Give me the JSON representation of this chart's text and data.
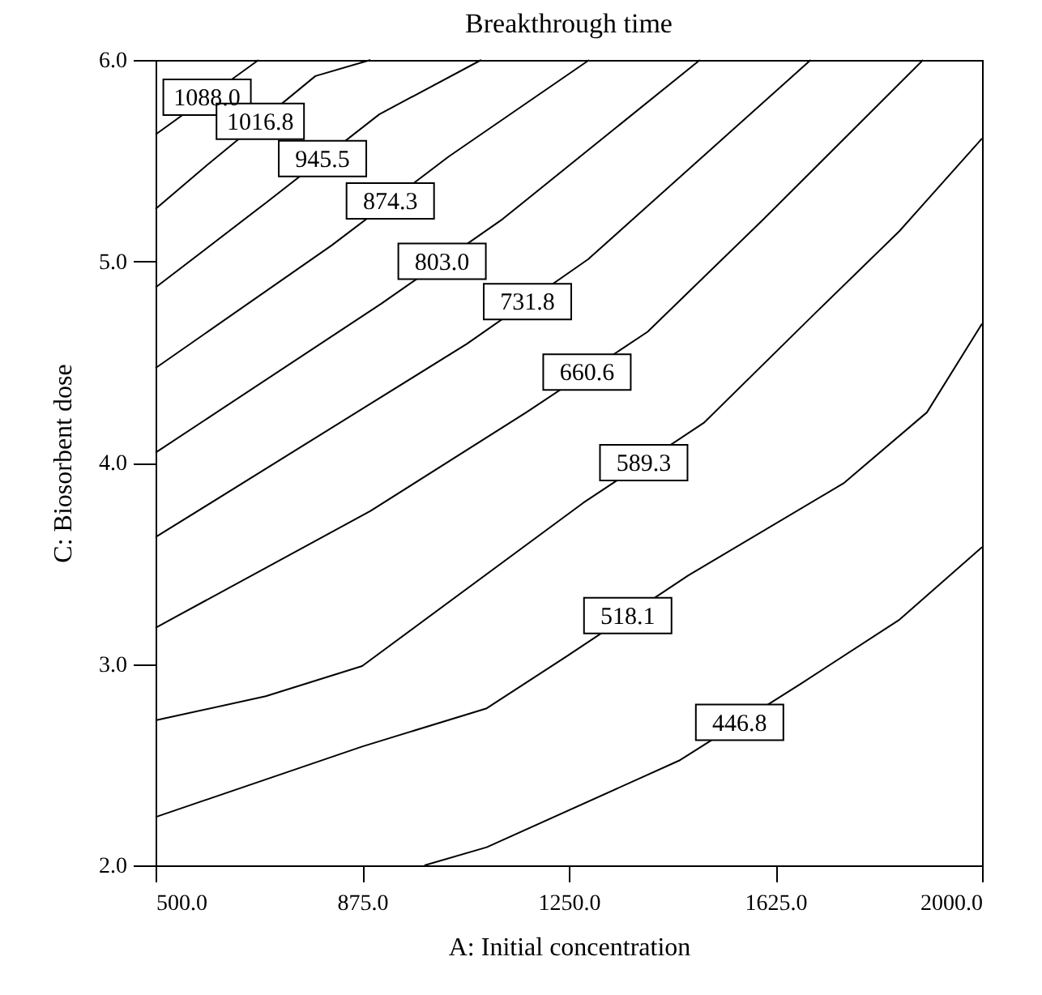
{
  "chart_data": {
    "type": "line",
    "title": "Breakthrough time",
    "xlabel": "A: Initial concentration",
    "ylabel": "C: Biosorbent dose",
    "xlim": [
      500,
      2000
    ],
    "ylim": [
      2.0,
      6.0
    ],
    "xticks": [
      {
        "value": 500,
        "label": "500.0"
      },
      {
        "value": 875,
        "label": "875.0"
      },
      {
        "value": 1250,
        "label": "1250.0"
      },
      {
        "value": 1625,
        "label": "1625.0"
      },
      {
        "value": 2000,
        "label": "2000.0"
      }
    ],
    "yticks": [
      {
        "value": 2,
        "label": "2.0"
      },
      {
        "value": 3,
        "label": "3.0"
      },
      {
        "value": 4,
        "label": "4.0"
      },
      {
        "value": 5,
        "label": "5.0"
      },
      {
        "value": 6,
        "label": "6.0"
      }
    ],
    "grid": false,
    "marker": "none",
    "line_style": "solid",
    "series": [
      {
        "name": "1088.0",
        "color": "#000000",
        "x": [
          500,
          687
        ],
        "values": [
          5.63,
          6.0
        ]
      },
      {
        "name": "1016.8",
        "color": "#000000",
        "x": [
          500,
          590,
          790,
          890
        ],
        "values": [
          5.26,
          5.47,
          5.92,
          6.0
        ]
      },
      {
        "name": "945.5",
        "color": "#000000",
        "x": [
          500,
          700,
          906,
          1091
        ],
        "values": [
          4.87,
          5.29,
          5.73,
          6.0
        ]
      },
      {
        "name": "874.3",
        "color": "#000000",
        "x": [
          500,
          820,
          1032,
          1287
        ],
        "values": [
          4.47,
          5.08,
          5.52,
          6.0
        ]
      },
      {
        "name": "803.0",
        "color": "#000000",
        "x": [
          500,
          910,
          1130,
          1488
        ],
        "values": [
          4.05,
          4.79,
          5.21,
          6.0
        ]
      },
      {
        "name": "731.8",
        "color": "#000000",
        "x": [
          500,
          1065,
          1285,
          1689
        ],
        "values": [
          3.63,
          4.59,
          5.01,
          6.0
        ]
      },
      {
        "name": "660.6",
        "color": "#000000",
        "x": [
          500,
          890,
          1173,
          1393,
          1600,
          1893
        ],
        "values": [
          3.18,
          3.76,
          4.25,
          4.65,
          5.2,
          6.0
        ]
      },
      {
        "name": "589.3",
        "color": "#000000",
        "x": [
          500,
          700,
          875,
          1276,
          1496,
          1700,
          1850,
          2000
        ],
        "values": [
          2.72,
          2.84,
          2.99,
          3.8,
          4.2,
          4.75,
          5.15,
          5.61
        ]
      },
      {
        "name": "518.1",
        "color": "#000000",
        "x": [
          500,
          875,
          1101,
          1247,
          1467,
          1750,
          1900,
          2000
        ],
        "values": [
          2.24,
          2.59,
          2.78,
          3.04,
          3.44,
          3.9,
          4.25,
          4.69
        ]
      },
      {
        "name": "446.8",
        "color": "#000000",
        "x": [
          988,
          1101,
          1450,
          1670,
          1850,
          2000
        ],
        "values": [
          2.0,
          2.09,
          2.52,
          2.9,
          3.22,
          3.58
        ]
      }
    ]
  }
}
